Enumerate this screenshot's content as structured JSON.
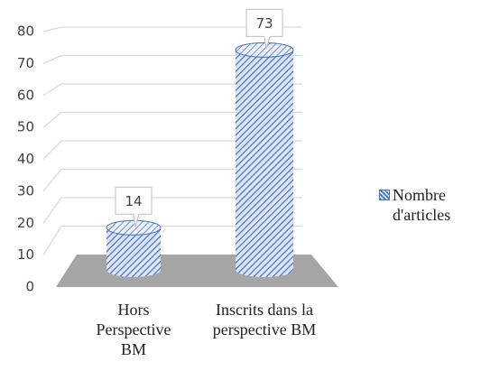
{
  "chart_data": {
    "type": "bar3d",
    "categories": [
      "Hors Perspective BM",
      "Inscrits dans la perspective BM"
    ],
    "series": [
      {
        "name": "Nombre d'articles",
        "color": "#4472c4",
        "values": [
          14,
          73
        ]
      }
    ],
    "ylim": [
      0,
      80
    ],
    "yticks": [
      0,
      10,
      20,
      30,
      40,
      50,
      60,
      70,
      80
    ],
    "grid": true,
    "legend": "right"
  }
}
